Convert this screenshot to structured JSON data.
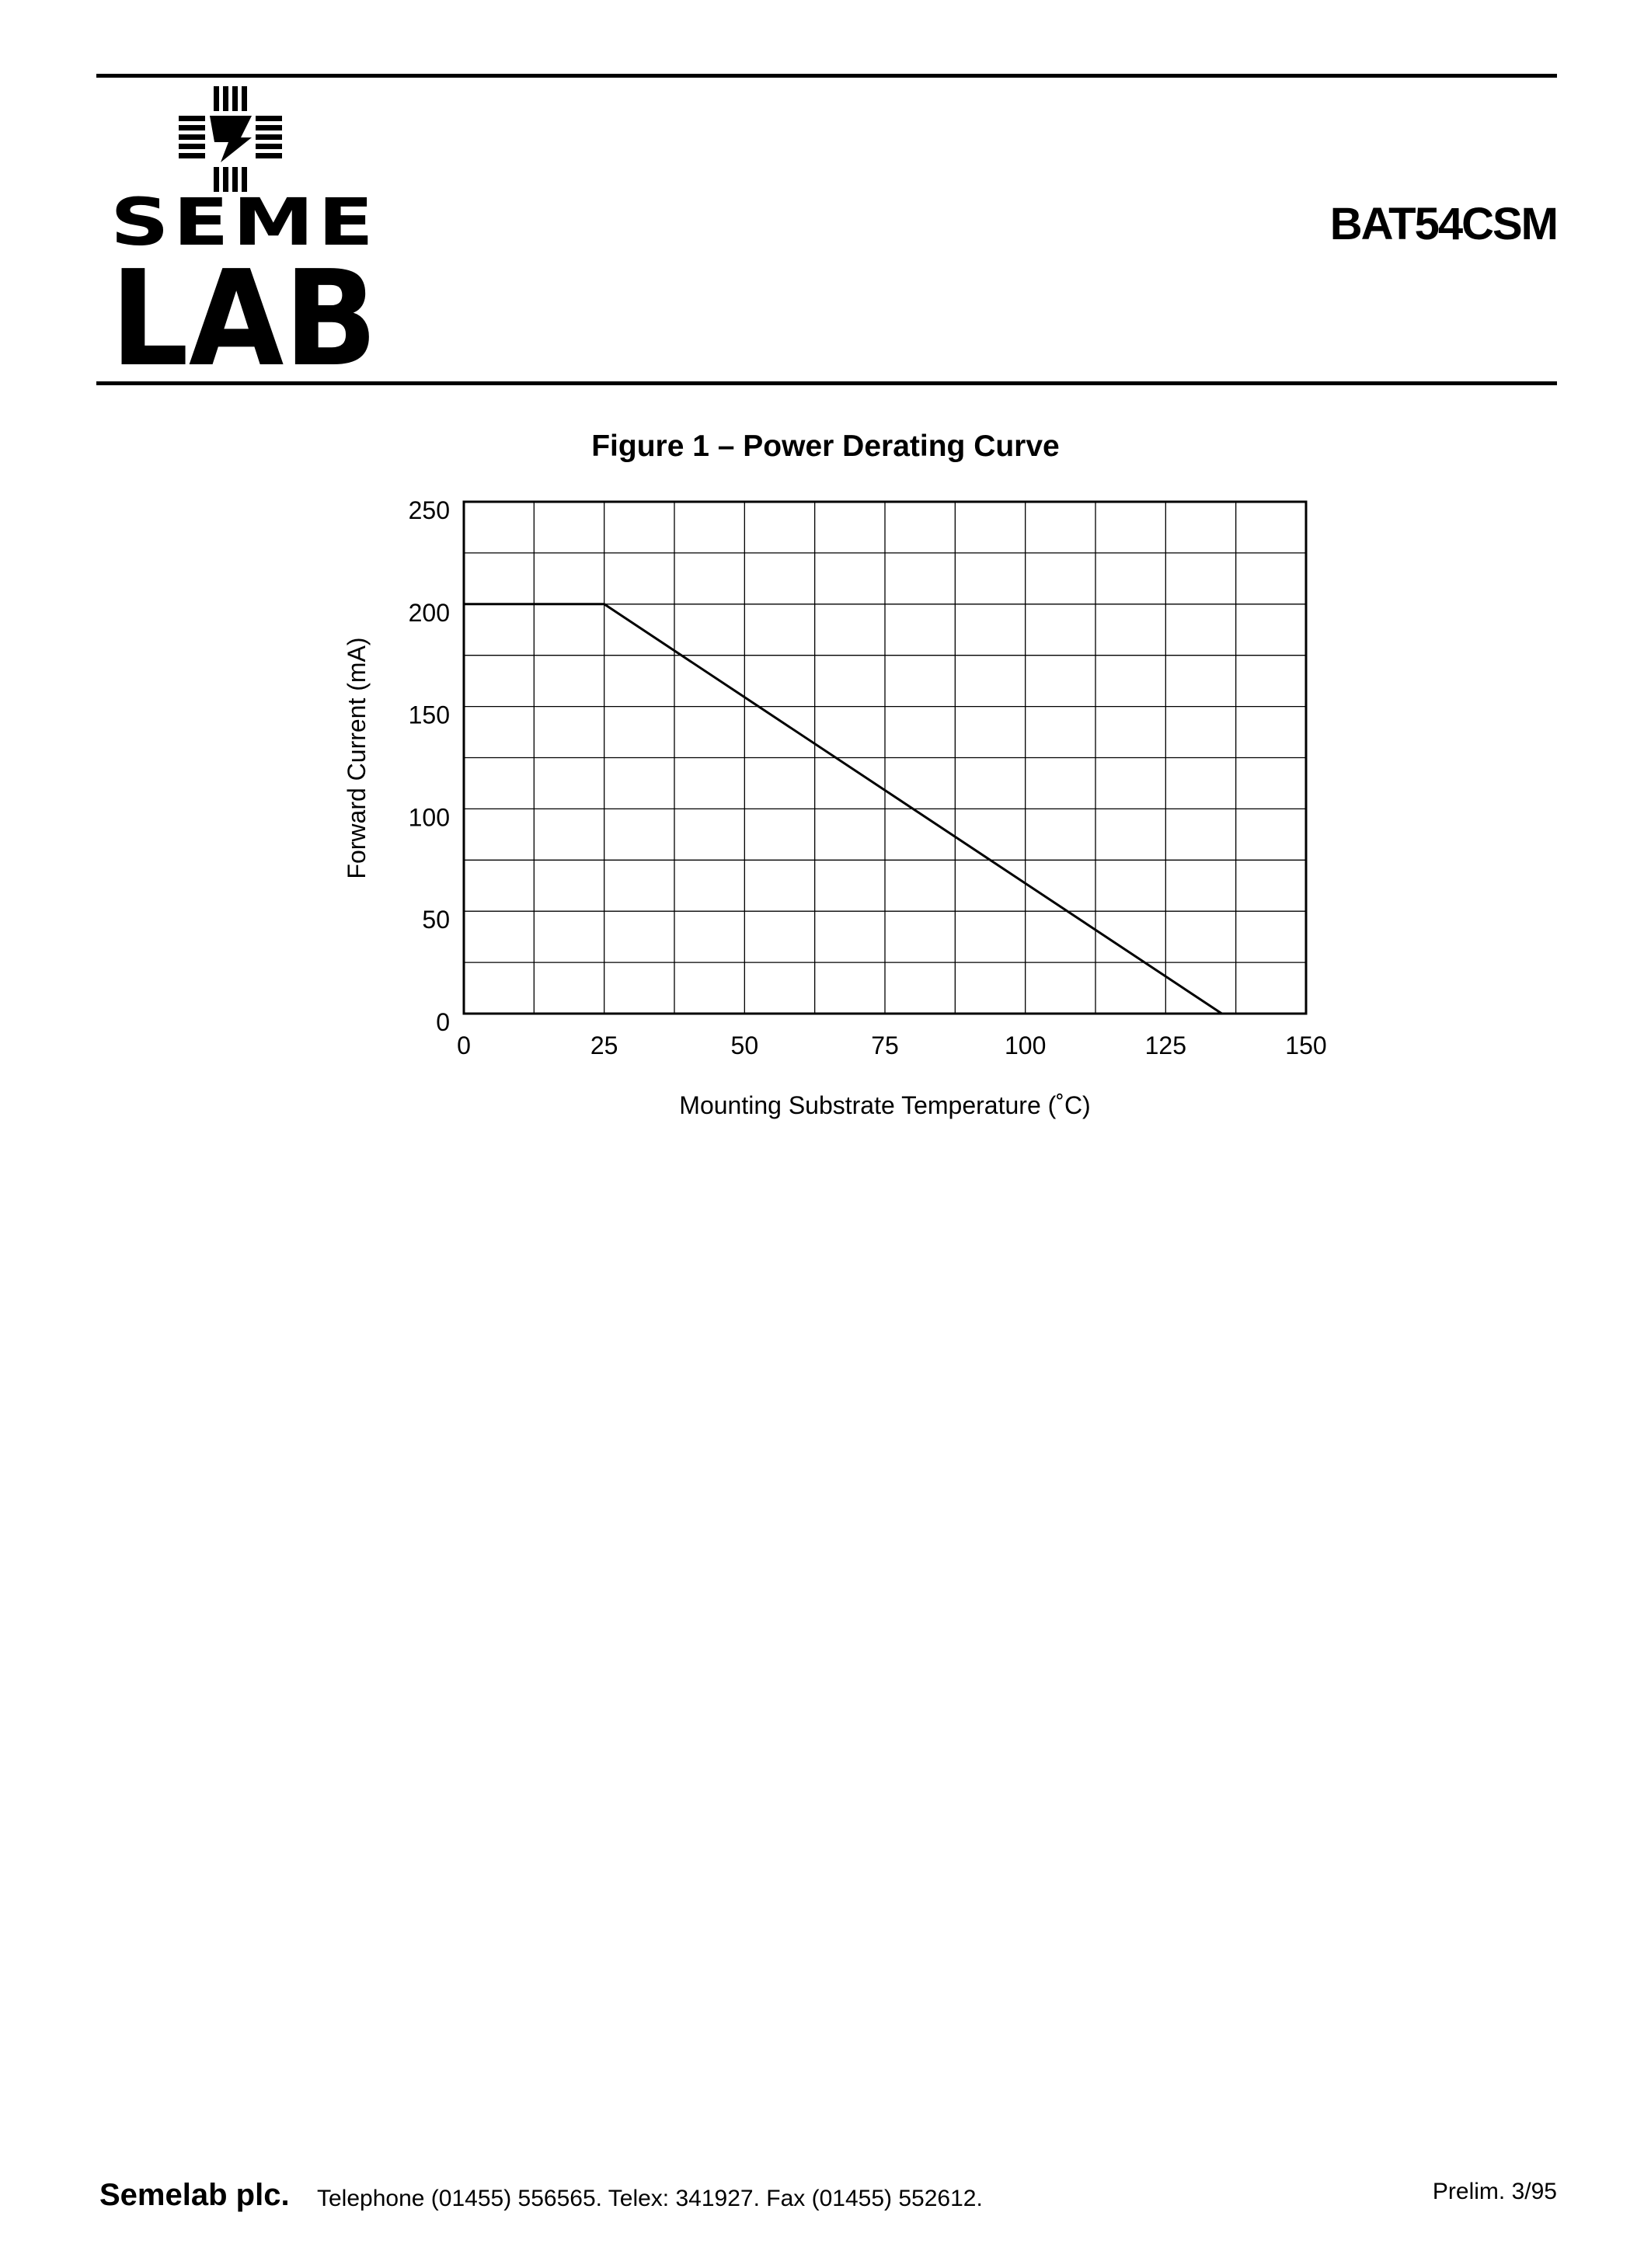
{
  "header": {
    "logo_text": [
      "SEME",
      "LAB"
    ],
    "part_number": "BAT54CSM"
  },
  "figure": {
    "title": "Figure 1 – Power Derating Curve"
  },
  "chart_data": {
    "type": "line",
    "title": "Figure 1 – Power Derating Curve",
    "xlabel": "Mounting Substrate Temperature (˚C)",
    "ylabel": "Forward Current (mA)",
    "xlim": [
      0,
      150
    ],
    "ylim": [
      0,
      250
    ],
    "x_ticks": [
      0,
      25,
      50,
      75,
      100,
      125,
      150
    ],
    "y_ticks": [
      0,
      50,
      100,
      150,
      200,
      250
    ],
    "x_grid_step": 12.5,
    "y_grid_step": 25,
    "grid": true,
    "series": [
      {
        "x": [
          0,
          25,
          135
        ],
        "y": [
          200,
          200,
          0
        ]
      }
    ]
  },
  "footer": {
    "company": "Semelab plc.",
    "contact": "Telephone (01455) 556565. Telex: 341927. Fax (01455) 552612.",
    "revision": "Prelim. 3/95"
  }
}
